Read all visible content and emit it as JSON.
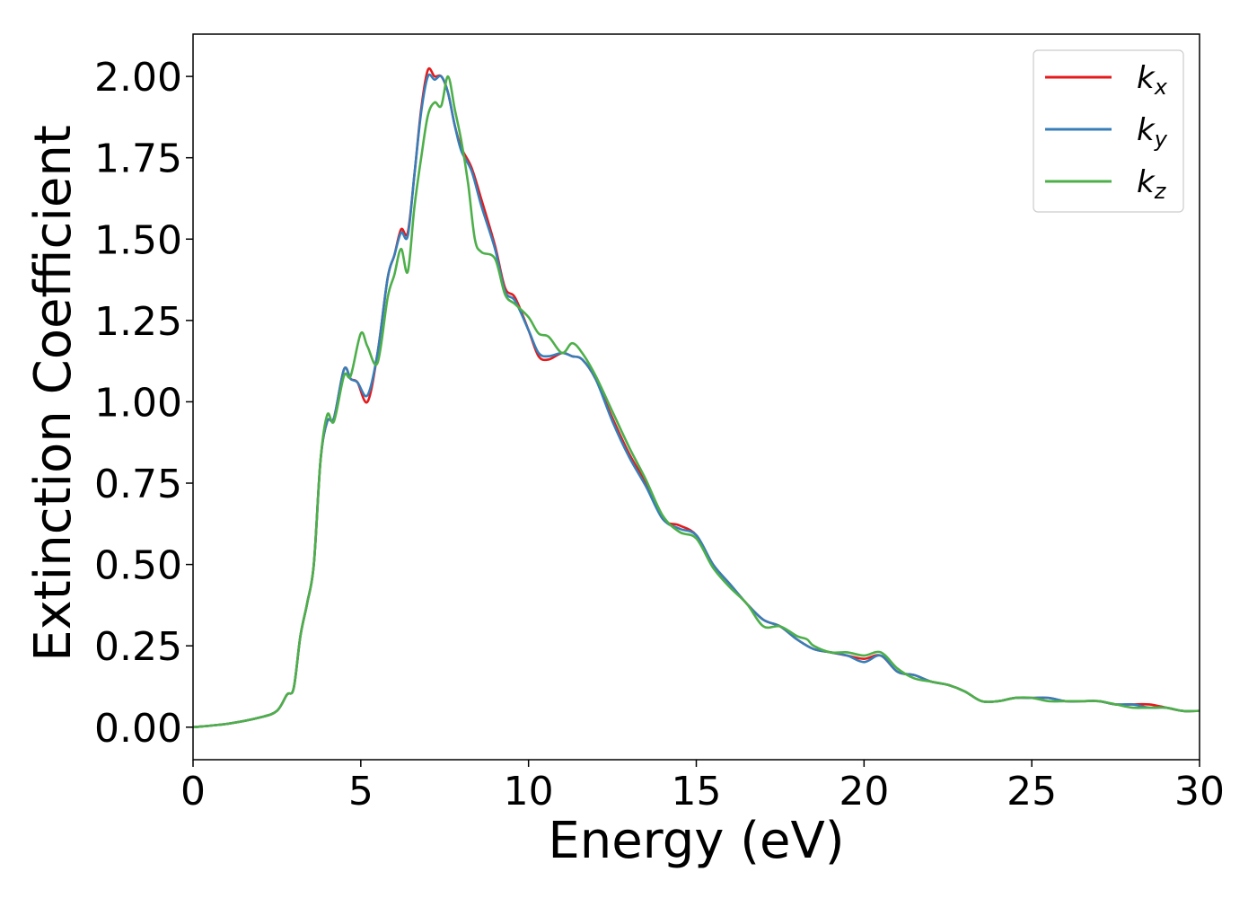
{
  "chart_data": {
    "type": "line",
    "title": "",
    "xlabel": "Energy (eV)",
    "ylabel": "Extinction Coefficient",
    "xlim": [
      0,
      30
    ],
    "ylim": [
      -0.1,
      2.13
    ],
    "xticks": [
      0,
      5,
      10,
      15,
      20,
      25,
      30
    ],
    "xtick_labels": [
      "0",
      "5",
      "10",
      "15",
      "20",
      "25",
      "30"
    ],
    "yticks": [
      0,
      0.25,
      0.5,
      0.75,
      1.0,
      1.25,
      1.5,
      1.75,
      2.0
    ],
    "ytick_labels": [
      "0.00",
      "0.25",
      "0.50",
      "0.75",
      "1.00",
      "1.25",
      "1.50",
      "1.75",
      "2.00"
    ],
    "grid": false,
    "legend_position": "top-right",
    "series": [
      {
        "name": "kx",
        "label_main": "k",
        "label_sub": "x",
        "color": "#e41a1c",
        "x": [
          0,
          1,
          2,
          2.5,
          2.8,
          3.0,
          3.2,
          3.4,
          3.6,
          3.8,
          4.0,
          4.2,
          4.5,
          4.7,
          4.9,
          5.2,
          5.5,
          5.8,
          6.0,
          6.2,
          6.4,
          6.6,
          6.8,
          7.0,
          7.2,
          7.4,
          7.6,
          7.8,
          8.0,
          8.3,
          8.6,
          9.0,
          9.3,
          9.6,
          10.0,
          10.3,
          10.6,
          11.0,
          11.3,
          11.6,
          12.0,
          12.5,
          13.0,
          13.5,
          14.0,
          14.5,
          15.0,
          15.5,
          16.0,
          16.5,
          17.0,
          17.5,
          18.0,
          18.5,
          19.0,
          19.5,
          20.0,
          20.5,
          21.0,
          21.5,
          22.0,
          22.5,
          23.0,
          23.5,
          24.0,
          24.5,
          25.0,
          25.5,
          26.0,
          26.5,
          27.0,
          27.5,
          28.0,
          28.5,
          29.0,
          29.5,
          30.0
        ],
        "y": [
          0.0,
          0.01,
          0.03,
          0.05,
          0.1,
          0.12,
          0.28,
          0.38,
          0.5,
          0.82,
          0.94,
          0.95,
          1.1,
          1.07,
          1.06,
          1.0,
          1.15,
          1.38,
          1.45,
          1.53,
          1.52,
          1.7,
          1.9,
          2.02,
          2.0,
          2.0,
          1.95,
          1.85,
          1.78,
          1.72,
          1.62,
          1.48,
          1.35,
          1.32,
          1.22,
          1.14,
          1.13,
          1.15,
          1.14,
          1.13,
          1.07,
          0.95,
          0.84,
          0.75,
          0.64,
          0.62,
          0.59,
          0.5,
          0.44,
          0.38,
          0.33,
          0.31,
          0.27,
          0.24,
          0.23,
          0.22,
          0.21,
          0.22,
          0.17,
          0.16,
          0.14,
          0.13,
          0.11,
          0.08,
          0.08,
          0.09,
          0.09,
          0.09,
          0.08,
          0.08,
          0.08,
          0.07,
          0.07,
          0.07,
          0.06,
          0.05,
          0.05
        ]
      },
      {
        "name": "ky",
        "label_main": "k",
        "label_sub": "y",
        "color": "#377eb8",
        "x": [
          0,
          1,
          2,
          2.5,
          2.8,
          3.0,
          3.2,
          3.4,
          3.6,
          3.8,
          4.0,
          4.2,
          4.5,
          4.7,
          4.9,
          5.2,
          5.5,
          5.8,
          6.0,
          6.2,
          6.4,
          6.6,
          6.8,
          7.0,
          7.2,
          7.4,
          7.6,
          7.8,
          8.0,
          8.3,
          8.6,
          9.0,
          9.3,
          9.6,
          10.0,
          10.3,
          10.6,
          11.0,
          11.3,
          11.6,
          12.0,
          12.5,
          13.0,
          13.5,
          14.0,
          14.5,
          15.0,
          15.5,
          16.0,
          16.5,
          17.0,
          17.5,
          18.0,
          18.5,
          19.0,
          19.5,
          20.0,
          20.5,
          21.0,
          21.5,
          22.0,
          22.5,
          23.0,
          23.5,
          24.0,
          24.5,
          25.0,
          25.5,
          26.0,
          26.5,
          27.0,
          27.5,
          28.0,
          28.5,
          29.0,
          29.5,
          30.0
        ],
        "y": [
          0.0,
          0.01,
          0.03,
          0.05,
          0.1,
          0.12,
          0.28,
          0.38,
          0.5,
          0.82,
          0.94,
          0.95,
          1.1,
          1.07,
          1.06,
          1.02,
          1.15,
          1.38,
          1.45,
          1.52,
          1.51,
          1.7,
          1.89,
          2.0,
          1.99,
          2.0,
          1.95,
          1.85,
          1.77,
          1.71,
          1.6,
          1.47,
          1.34,
          1.31,
          1.22,
          1.15,
          1.14,
          1.15,
          1.14,
          1.13,
          1.07,
          0.94,
          0.83,
          0.74,
          0.64,
          0.61,
          0.59,
          0.5,
          0.44,
          0.38,
          0.33,
          0.31,
          0.27,
          0.24,
          0.23,
          0.22,
          0.2,
          0.22,
          0.17,
          0.16,
          0.14,
          0.13,
          0.11,
          0.08,
          0.08,
          0.09,
          0.09,
          0.09,
          0.08,
          0.08,
          0.08,
          0.07,
          0.07,
          0.06,
          0.06,
          0.05,
          0.05
        ]
      },
      {
        "name": "kz",
        "label_main": "k",
        "label_sub": "z",
        "color": "#4daf4a",
        "x": [
          0,
          1,
          2,
          2.5,
          2.8,
          3.0,
          3.2,
          3.4,
          3.6,
          3.8,
          4.0,
          4.2,
          4.5,
          4.7,
          5.0,
          5.2,
          5.5,
          5.8,
          6.0,
          6.2,
          6.4,
          6.6,
          6.8,
          7.0,
          7.2,
          7.4,
          7.6,
          7.8,
          8.0,
          8.2,
          8.4,
          8.6,
          9.0,
          9.3,
          9.6,
          10.0,
          10.3,
          10.6,
          11.0,
          11.3,
          11.6,
          12.0,
          12.5,
          13.0,
          13.5,
          14.0,
          14.5,
          15.0,
          15.5,
          16.0,
          16.5,
          17.0,
          17.5,
          18.0,
          18.3,
          18.5,
          19.0,
          19.5,
          20.0,
          20.5,
          21.0,
          21.5,
          22.0,
          22.5,
          23.0,
          23.5,
          24.0,
          24.5,
          25.0,
          25.5,
          26.0,
          26.5,
          27.0,
          27.5,
          28.0,
          28.5,
          29.0,
          29.5,
          30.0
        ],
        "y": [
          0.0,
          0.01,
          0.03,
          0.05,
          0.1,
          0.12,
          0.28,
          0.38,
          0.5,
          0.82,
          0.96,
          0.94,
          1.08,
          1.08,
          1.21,
          1.17,
          1.12,
          1.32,
          1.39,
          1.47,
          1.4,
          1.6,
          1.75,
          1.88,
          1.92,
          1.91,
          2.0,
          1.9,
          1.8,
          1.67,
          1.5,
          1.46,
          1.44,
          1.33,
          1.3,
          1.26,
          1.21,
          1.2,
          1.15,
          1.18,
          1.15,
          1.08,
          0.97,
          0.86,
          0.76,
          0.65,
          0.6,
          0.58,
          0.49,
          0.43,
          0.38,
          0.31,
          0.31,
          0.28,
          0.27,
          0.25,
          0.23,
          0.23,
          0.22,
          0.23,
          0.18,
          0.15,
          0.14,
          0.13,
          0.11,
          0.08,
          0.08,
          0.09,
          0.09,
          0.08,
          0.08,
          0.08,
          0.08,
          0.07,
          0.06,
          0.06,
          0.06,
          0.05,
          0.05
        ]
      }
    ]
  }
}
